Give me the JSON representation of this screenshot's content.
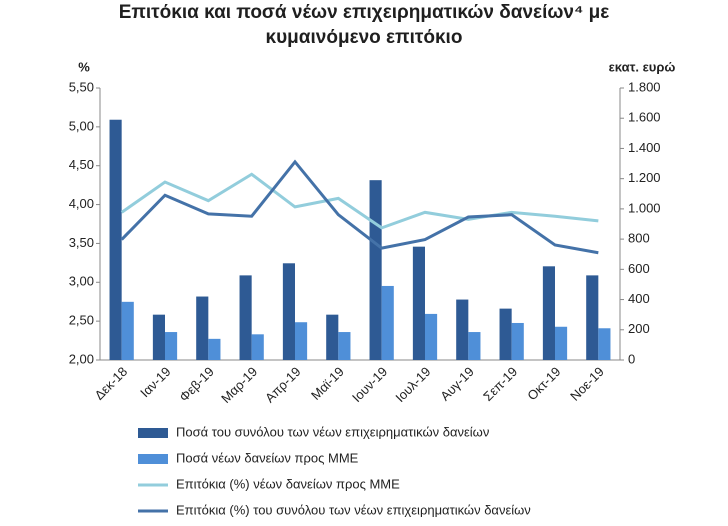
{
  "chart_data": {
    "type": "combo",
    "title": "Επιτόκια και ποσά νέων επιχειρηματικών δανείων⁴ με κυμαινόμενο επιτόκιο",
    "ylabel": "%",
    "y2label": "εκατ. ευρώ",
    "categories": [
      "Δεκ-18",
      "Ιαν-19",
      "Φεβ-19",
      "Μαρ-19",
      "Απρ-19",
      "Μαϊ-19",
      "Ιουν-19",
      "Ιουλ-19",
      "Αυγ-19",
      "Σεπ-19",
      "Οκτ-19",
      "Νοε-19"
    ],
    "ylim": [
      2,
      5.5
    ],
    "yticks": [
      {
        "value": 2,
        "label": "2,00"
      },
      {
        "value": 2.5,
        "label": "2,50"
      },
      {
        "value": 3,
        "label": "3,00"
      },
      {
        "value": 3.5,
        "label": "3,50"
      },
      {
        "value": 4,
        "label": "4,00"
      },
      {
        "value": 4.5,
        "label": "4,50"
      },
      {
        "value": 5,
        "label": "5,00"
      },
      {
        "value": 5.5,
        "label": "5,50"
      }
    ],
    "y2lim": [
      0,
      1800
    ],
    "y2ticks": [
      0,
      200,
      400,
      600,
      800,
      {
        "value": 1000,
        "label": "1.000"
      },
      {
        "value": 1200,
        "label": "1.200"
      },
      {
        "value": 1400,
        "label": "1.400"
      },
      {
        "value": 1600,
        "label": "1.600"
      },
      {
        "value": 1800,
        "label": "1.800"
      }
    ],
    "series": [
      {
        "name": "Ποσά του συνόλου των νέων επιχειρηματικών δανείων",
        "type": "bar",
        "axis": "y2",
        "color": "#2e5a94",
        "values": [
          1590,
          300,
          420,
          560,
          640,
          300,
          1190,
          750,
          400,
          340,
          620,
          560
        ]
      },
      {
        "name": "Ποσά νέων δανείων προς ΜΜΕ",
        "type": "bar",
        "axis": "y2",
        "color": "#4f8fd8",
        "values": [
          385,
          185,
          140,
          170,
          250,
          185,
          490,
          305,
          185,
          245,
          220,
          210
        ]
      },
      {
        "name": "Επιτόκια (%) νέων δανείων προς ΜΜΕ",
        "type": "line",
        "axis": "y",
        "color": "#92cddc",
        "values": [
          3.9,
          4.29,
          4.05,
          4.39,
          3.97,
          4.08,
          3.7,
          3.9,
          3.81,
          3.9,
          3.85,
          3.79
        ]
      },
      {
        "name": "Επιτόκια (%) του συνόλου των νέων επιχειρηματικών δανείων",
        "type": "line",
        "axis": "y",
        "color": "#4472a8",
        "values": [
          3.55,
          4.12,
          3.88,
          3.85,
          4.55,
          3.87,
          3.44,
          3.55,
          3.84,
          3.87,
          3.48,
          3.38
        ]
      }
    ]
  }
}
